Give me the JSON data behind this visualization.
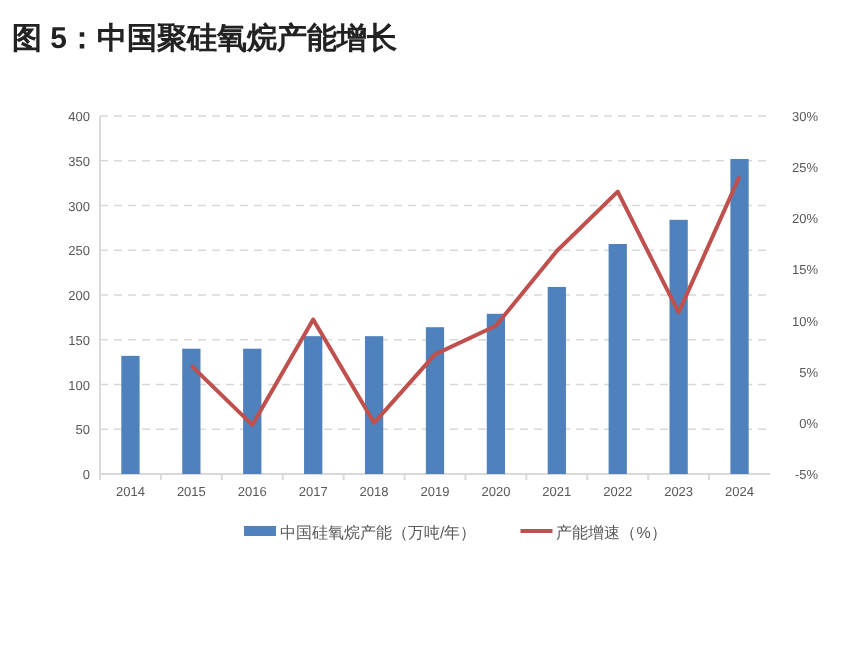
{
  "chart_data": {
    "type": "bar",
    "title": "图 5：中国聚硅氧烷产能增长",
    "categories": [
      "2014",
      "2015",
      "2016",
      "2017",
      "2018",
      "2019",
      "2020",
      "2021",
      "2022",
      "2023",
      "2024"
    ],
    "series": [
      {
        "name": "中国硅氧烷产能（万吨/年）",
        "color": "#4f81bd",
        "values": [
          132,
          140,
          140,
          154,
          154,
          164,
          179,
          209,
          257,
          284,
          352
        ]
      },
      {
        "name": "产能增速（%）",
        "type": "line",
        "axis": "y2",
        "color": "#c0504d",
        "values": [
          null,
          5.6,
          -0.2,
          10.1,
          0,
          6.7,
          9.5,
          16.8,
          22.6,
          10.8,
          24.1
        ]
      }
    ],
    "ylim": [
      0,
      400
    ],
    "yticks": [
      0,
      50,
      100,
      150,
      200,
      250,
      300,
      350,
      400
    ],
    "y2lim": [
      -5,
      30
    ],
    "y2ticks": [
      {
        "value": -5,
        "label": "-5%"
      },
      {
        "value": 0,
        "label": "0%"
      },
      {
        "value": 5,
        "label": "5%"
      },
      {
        "value": 10,
        "label": "10%"
      },
      {
        "value": 15,
        "label": "15%"
      },
      {
        "value": 20,
        "label": "20%"
      },
      {
        "value": 25,
        "label": "25%"
      },
      {
        "value": 30,
        "label": "30%"
      }
    ],
    "grid": "y",
    "legend": "bottom",
    "marker": "none",
    "line_style": "solid"
  }
}
